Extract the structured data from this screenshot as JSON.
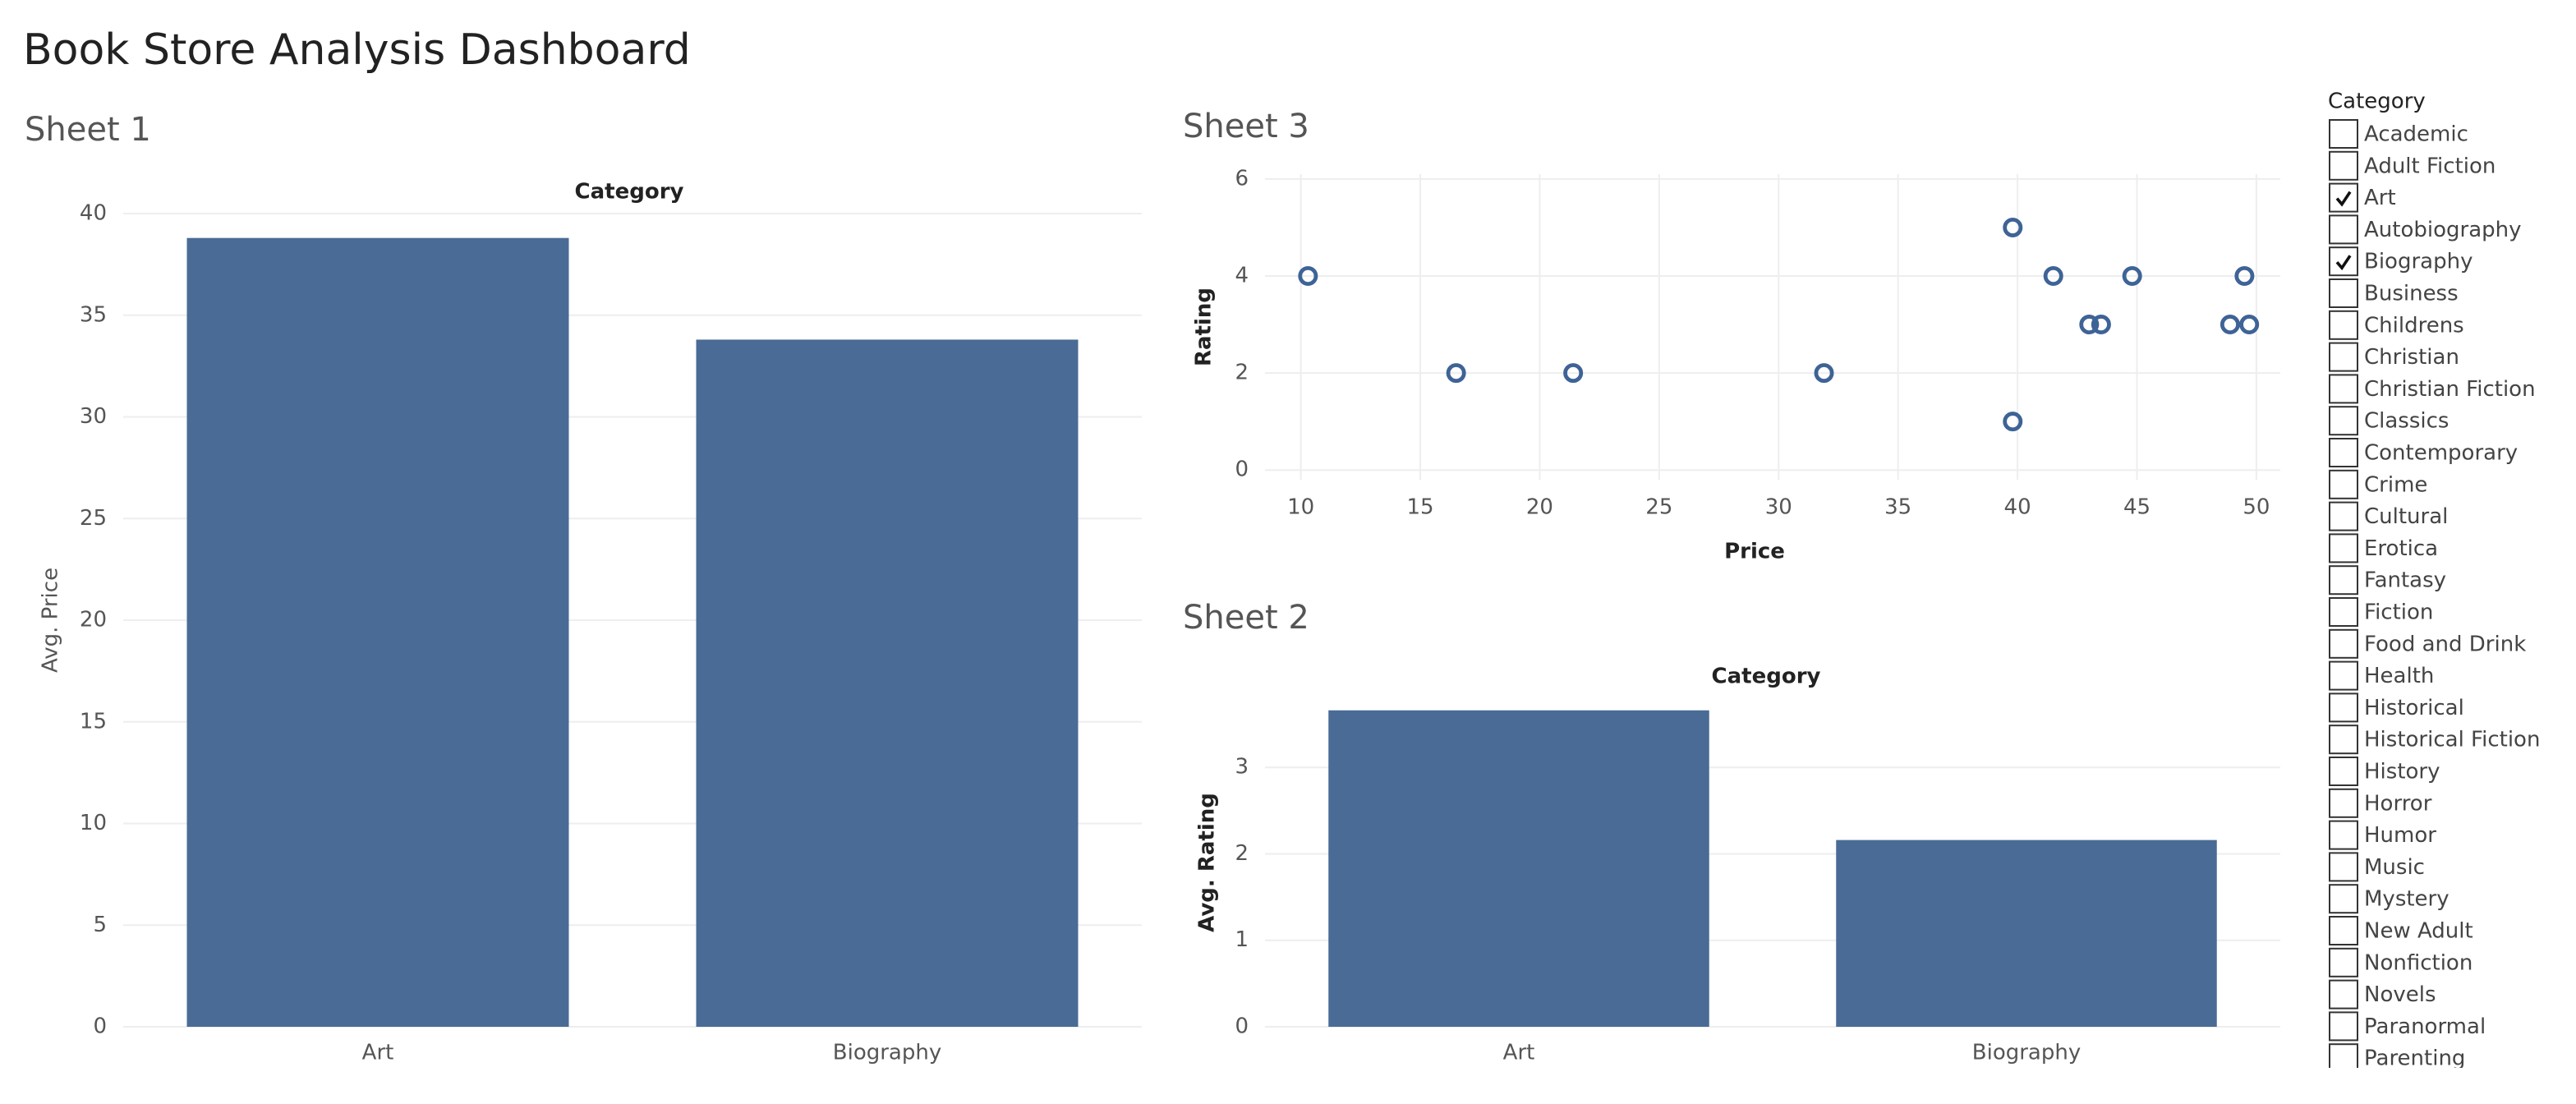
{
  "title": "Book Store Analysis Dashboard",
  "chart_data": [
    {
      "type": "bar",
      "title": "Sheet 1",
      "header": "Category",
      "y_label": "Avg. Price",
      "categories": [
        "Art",
        "Biography"
      ],
      "values": [
        38.8,
        33.8
      ],
      "color": "#4a6b95",
      "ylim": [
        0,
        40
      ],
      "yticks": [
        0,
        5,
        10,
        15,
        20,
        25,
        30,
        35,
        40
      ],
      "grid": true
    },
    {
      "type": "scatter",
      "title": "Sheet 3",
      "x_label": "Price",
      "y_label": "Rating",
      "color": "#3e6396",
      "x": [
        10.3,
        16.5,
        21.4,
        31.9,
        39.8,
        39.8,
        41.5,
        43.0,
        43.5,
        44.8,
        48.9,
        49.5,
        49.7
      ],
      "y": [
        4,
        2,
        2,
        2,
        5,
        1,
        4,
        3,
        3,
        4,
        3,
        4,
        3
      ],
      "xlim": [
        8.5,
        51
      ],
      "xticks": [
        10,
        15,
        20,
        25,
        30,
        35,
        40,
        45,
        50
      ],
      "ylim": [
        -0.2,
        6.1
      ],
      "yticks": [
        0,
        2,
        4,
        6
      ],
      "grid": true
    },
    {
      "type": "bar",
      "title": "Sheet 2",
      "header": "Category",
      "y_label": "Avg. Rating",
      "categories": [
        "Art",
        "Biography"
      ],
      "values": [
        3.66,
        2.16
      ],
      "color": "#4a6b95",
      "ylim": [
        0,
        3.8
      ],
      "yticks": [
        0,
        1,
        2,
        3
      ],
      "grid": true
    }
  ],
  "filter": {
    "title": "Category",
    "items": [
      {
        "label": "Academic",
        "checked": false
      },
      {
        "label": "Adult Fiction",
        "checked": false
      },
      {
        "label": "Art",
        "checked": true
      },
      {
        "label": "Autobiography",
        "checked": false
      },
      {
        "label": "Biography",
        "checked": true
      },
      {
        "label": "Business",
        "checked": false
      },
      {
        "label": "Childrens",
        "checked": false
      },
      {
        "label": "Christian",
        "checked": false
      },
      {
        "label": "Christian Fiction",
        "checked": false
      },
      {
        "label": "Classics",
        "checked": false
      },
      {
        "label": "Contemporary",
        "checked": false
      },
      {
        "label": "Crime",
        "checked": false
      },
      {
        "label": "Cultural",
        "checked": false
      },
      {
        "label": "Erotica",
        "checked": false
      },
      {
        "label": "Fantasy",
        "checked": false
      },
      {
        "label": "Fiction",
        "checked": false
      },
      {
        "label": "Food and Drink",
        "checked": false
      },
      {
        "label": "Health",
        "checked": false
      },
      {
        "label": "Historical",
        "checked": false
      },
      {
        "label": "Historical Fiction",
        "checked": false
      },
      {
        "label": "History",
        "checked": false
      },
      {
        "label": "Horror",
        "checked": false
      },
      {
        "label": "Humor",
        "checked": false
      },
      {
        "label": "Music",
        "checked": false
      },
      {
        "label": "Mystery",
        "checked": false
      },
      {
        "label": "New Adult",
        "checked": false
      },
      {
        "label": "Nonfiction",
        "checked": false
      },
      {
        "label": "Novels",
        "checked": false
      },
      {
        "label": "Paranormal",
        "checked": false
      },
      {
        "label": "Parenting",
        "checked": false
      }
    ]
  }
}
